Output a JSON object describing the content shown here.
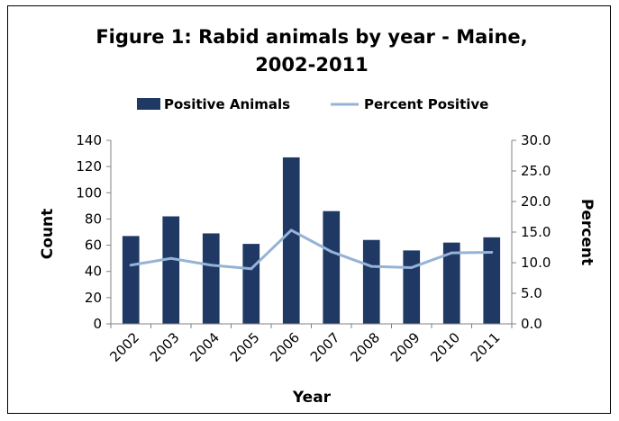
{
  "chart_data": {
    "type": "bar",
    "title": "Figure 1: Rabid animals by year - Maine,",
    "title_line2": "2002-2011",
    "categories": [
      "2002",
      "2003",
      "2004",
      "2005",
      "2006",
      "2007",
      "2008",
      "2009",
      "2010",
      "2011"
    ],
    "series": [
      {
        "name": "Positive Animals",
        "type": "bar",
        "axis": "left",
        "color": "#1f3864",
        "values": [
          67,
          82,
          69,
          61,
          127,
          86,
          64,
          56,
          62,
          66
        ]
      },
      {
        "name": "Percent Positive",
        "type": "line",
        "axis": "right",
        "color": "#95b3d7",
        "values": [
          9.6,
          10.7,
          9.6,
          9.0,
          15.3,
          11.8,
          9.4,
          9.2,
          11.6,
          11.7
        ]
      }
    ],
    "xlabel": "Year",
    "ylabel": "Count",
    "y2label": "Percent",
    "ylim": [
      0,
      140
    ],
    "y2lim": [
      0,
      30
    ],
    "yticks": [
      "0",
      "20",
      "40",
      "60",
      "80",
      "100",
      "120",
      "140"
    ],
    "y2ticks": [
      "0.0",
      "5.0",
      "10.0",
      "15.0",
      "20.0",
      "25.0",
      "30.0"
    ],
    "legend_position": "top",
    "grid": false
  }
}
